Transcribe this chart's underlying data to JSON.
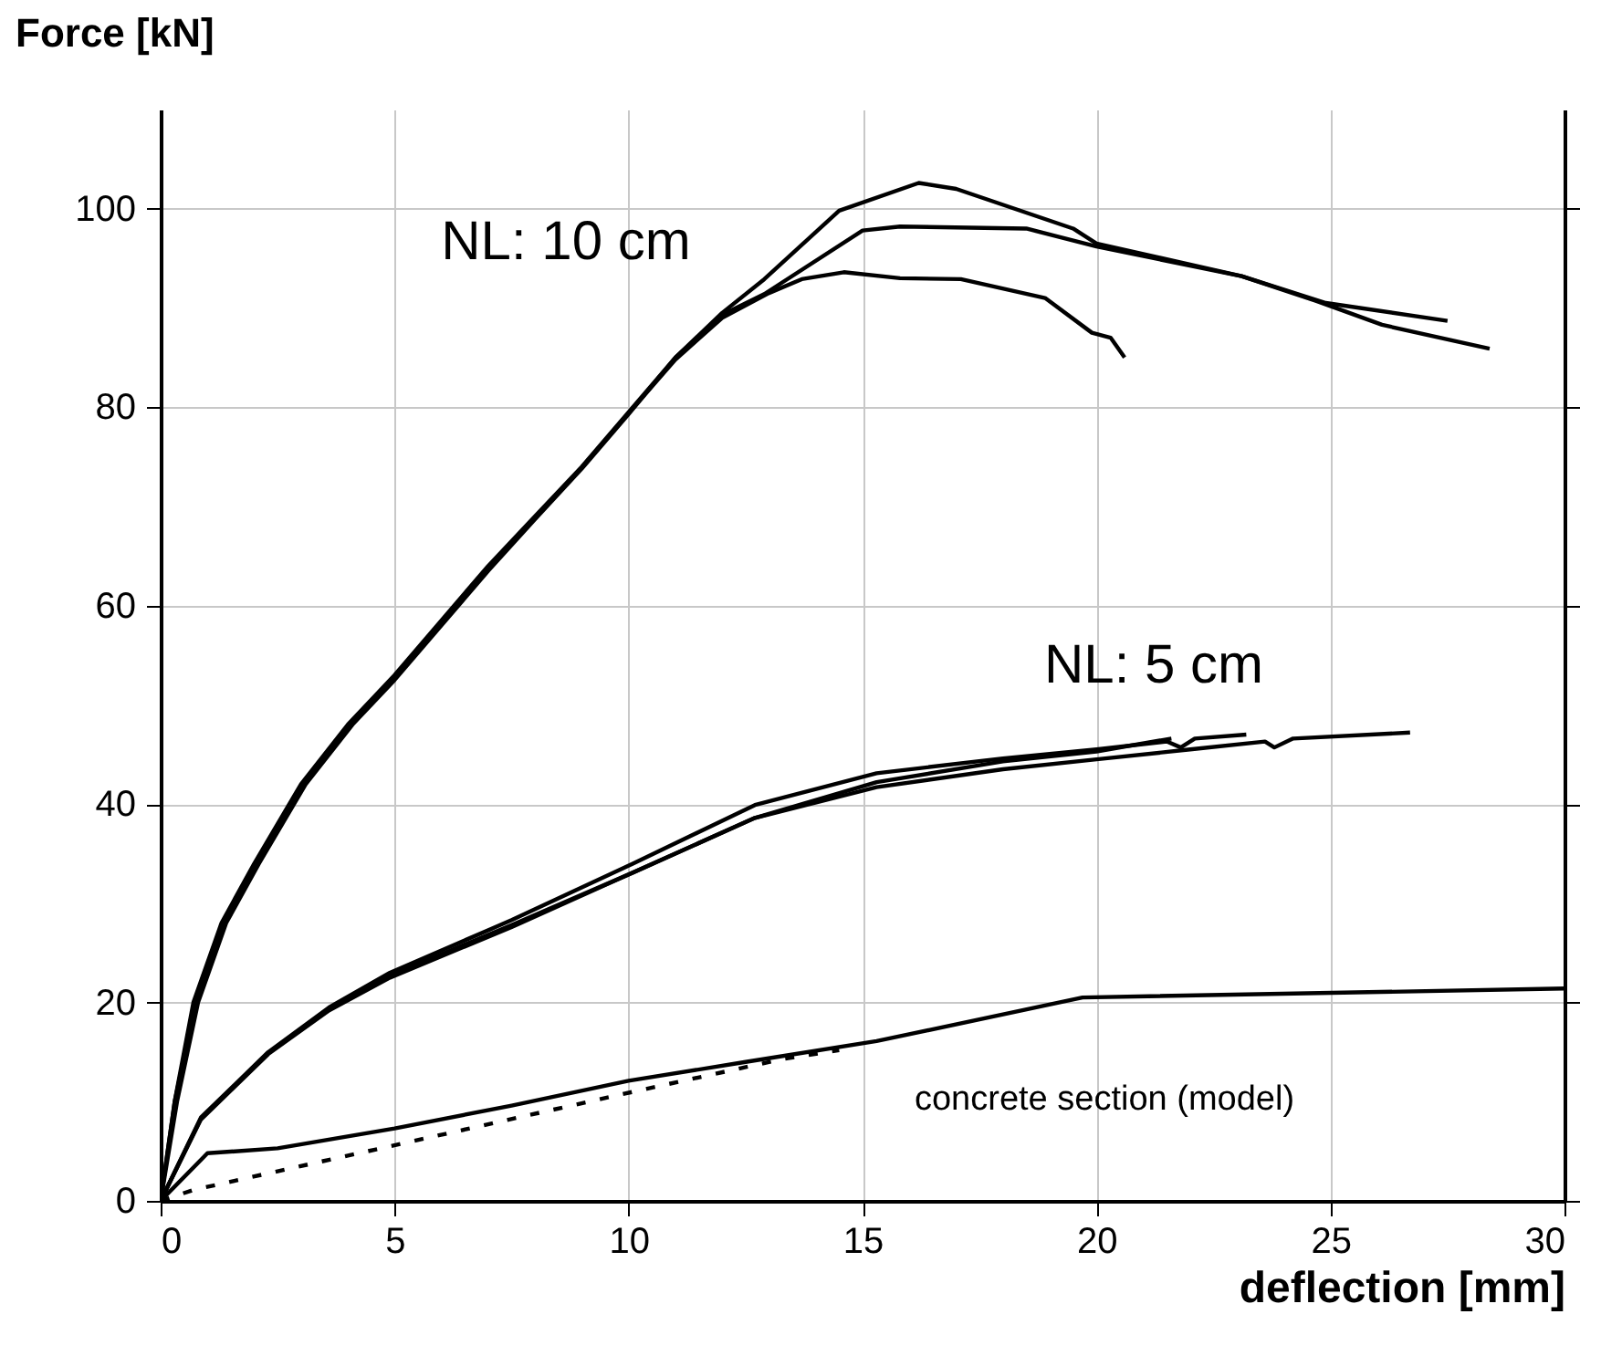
{
  "chart_data": {
    "type": "line",
    "xlabel": "deflection [mm]",
    "ylabel": "Force [kN]",
    "xlim": [
      0,
      30
    ],
    "ylim": [
      0,
      110
    ],
    "xticks": [
      0,
      5,
      10,
      15,
      20,
      25,
      30
    ],
    "yticks": [
      0,
      20,
      40,
      60,
      80,
      100
    ],
    "grid": true,
    "line_style": "solid",
    "annotations": [
      "NL: 10 cm",
      "NL: 5 cm",
      "concrete section (model)"
    ],
    "series": [
      {
        "color": "#000000",
        "x": [
          0,
          0.3,
          0.7,
          1.3,
          2,
          3,
          4,
          5,
          6,
          7,
          8,
          9,
          10,
          11,
          12,
          12.9,
          14.5,
          16.2,
          17,
          19.5,
          20,
          23.1,
          24.7,
          26.1,
          28.4
        ],
        "values": [
          0,
          10,
          20,
          28,
          34,
          42,
          48,
          53,
          58.5,
          64,
          69,
          74,
          79.5,
          85,
          89.5,
          92.9,
          99.8,
          102.6,
          102,
          98,
          96.5,
          93.2,
          90.7,
          88.3,
          85.9
        ]
      },
      {
        "color": "#000000",
        "x": [
          0,
          0.35,
          0.8,
          1.4,
          2.1,
          3.1,
          4.1,
          5,
          6,
          7,
          8,
          9,
          10,
          11,
          12,
          12.9,
          15,
          15.8,
          18.5,
          20,
          23.1,
          24.9,
          27.5
        ],
        "values": [
          0,
          10,
          20,
          28,
          34,
          42,
          48,
          52.5,
          58,
          63.5,
          68.7,
          73.8,
          79.3,
          85,
          89.3,
          91.4,
          97.8,
          98.2,
          98,
          96.2,
          93.2,
          90.5,
          88.7
        ]
      },
      {
        "color": "#000000",
        "x": [
          0,
          0.3,
          0.75,
          1.35,
          2.05,
          3.05,
          4.05,
          5,
          6,
          7,
          8,
          9,
          10,
          11,
          12,
          13,
          13.7,
          14.6,
          15.8,
          17.1,
          18.9,
          19.9,
          20.3,
          20.6
        ],
        "values": [
          0,
          10,
          20,
          28,
          34,
          42,
          48,
          52.8,
          58.3,
          63.8,
          68.9,
          73.9,
          79.4,
          84.8,
          89,
          91.5,
          92.9,
          93.6,
          93,
          92.9,
          91,
          87.5,
          87,
          85
        ]
      },
      {
        "color": "#000000",
        "x": [
          0,
          0.86,
          2.3,
          3.6,
          4.9,
          7.5,
          10.1,
          12.7,
          15.3,
          18,
          20,
          22,
          23.6,
          23.8,
          24.2,
          26.7
        ],
        "values": [
          0,
          8.2,
          14.8,
          19.2,
          22.5,
          27.6,
          33.1,
          38.6,
          41.7,
          43.5,
          44.5,
          45.5,
          46.3,
          45.7,
          46.6,
          47.2
        ]
      },
      {
        "color": "#000000",
        "x": [
          0,
          0.86,
          2.3,
          3.6,
          4.9,
          7.5,
          10.1,
          12.7,
          15.3,
          18,
          20,
          21.5,
          21.8,
          22.1,
          23.2
        ],
        "values": [
          0,
          8.4,
          15,
          19.5,
          23,
          28.3,
          34,
          39.9,
          43.1,
          44.6,
          45.5,
          46.3,
          45.7,
          46.6,
          47
        ]
      },
      {
        "color": "#000000",
        "x": [
          0,
          0.86,
          2.3,
          3.6,
          4.9,
          7.5,
          10.1,
          12.7,
          15.3,
          18,
          20,
          21.6
        ],
        "values": [
          0,
          8.3,
          14.9,
          19.3,
          22.7,
          27.8,
          33.1,
          38.6,
          42.2,
          44.3,
          45.3,
          46.6
        ]
      },
      {
        "color": "#000000",
        "x": [
          0,
          1,
          2.5,
          5,
          7.5,
          10,
          12.5,
          15.3,
          19.7,
          30
        ],
        "values": [
          0,
          4.8,
          5.3,
          7.3,
          9.6,
          12.1,
          14,
          16.1,
          20.5,
          21.4
        ]
      },
      {
        "color": "#000000",
        "line_style": "dotted",
        "x": [
          0,
          0.7,
          4.9,
          10.1,
          13.3,
          14.5
        ],
        "values": [
          0,
          1.1,
          5.5,
          11,
          14.3,
          15.2
        ]
      }
    ]
  }
}
